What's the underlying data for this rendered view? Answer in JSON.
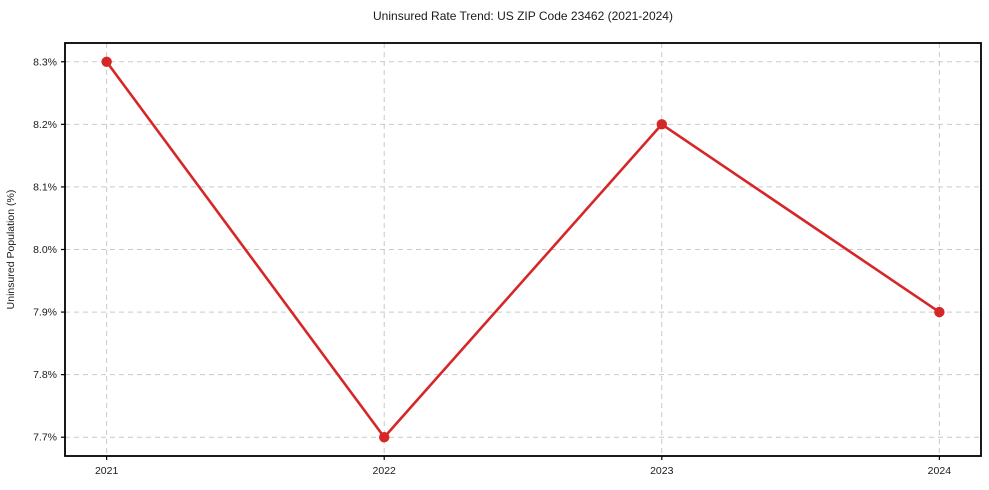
{
  "chart_data": {
    "type": "line",
    "title": "Uninsured Rate Trend: US ZIP Code 23462 (2021-2024)",
    "xlabel": "",
    "ylabel": "Uninsured Population (%)",
    "x": [
      2021,
      2022,
      2023,
      2024
    ],
    "x_tick_labels": [
      "2021",
      "2022",
      "2023",
      "2024"
    ],
    "series": [
      {
        "name": "uninsured-rate",
        "values": [
          8.3,
          7.7,
          8.2,
          7.9
        ],
        "color": "#d62728",
        "marker": "circle"
      }
    ],
    "y_ticks": [
      7.7,
      7.8,
      7.9,
      8.0,
      8.1,
      8.2,
      8.3
    ],
    "y_tick_labels": [
      "7.7%",
      "7.8%",
      "7.9%",
      "8.0%",
      "8.1%",
      "8.2%",
      "8.3%"
    ],
    "ylim": [
      7.67,
      8.33
    ],
    "xlim": [
      2020.85,
      2024.15
    ],
    "grid": true,
    "grid_color": "#c9c9c9",
    "frame_color": "#000000",
    "background": "#ffffff",
    "legend": "none"
  }
}
